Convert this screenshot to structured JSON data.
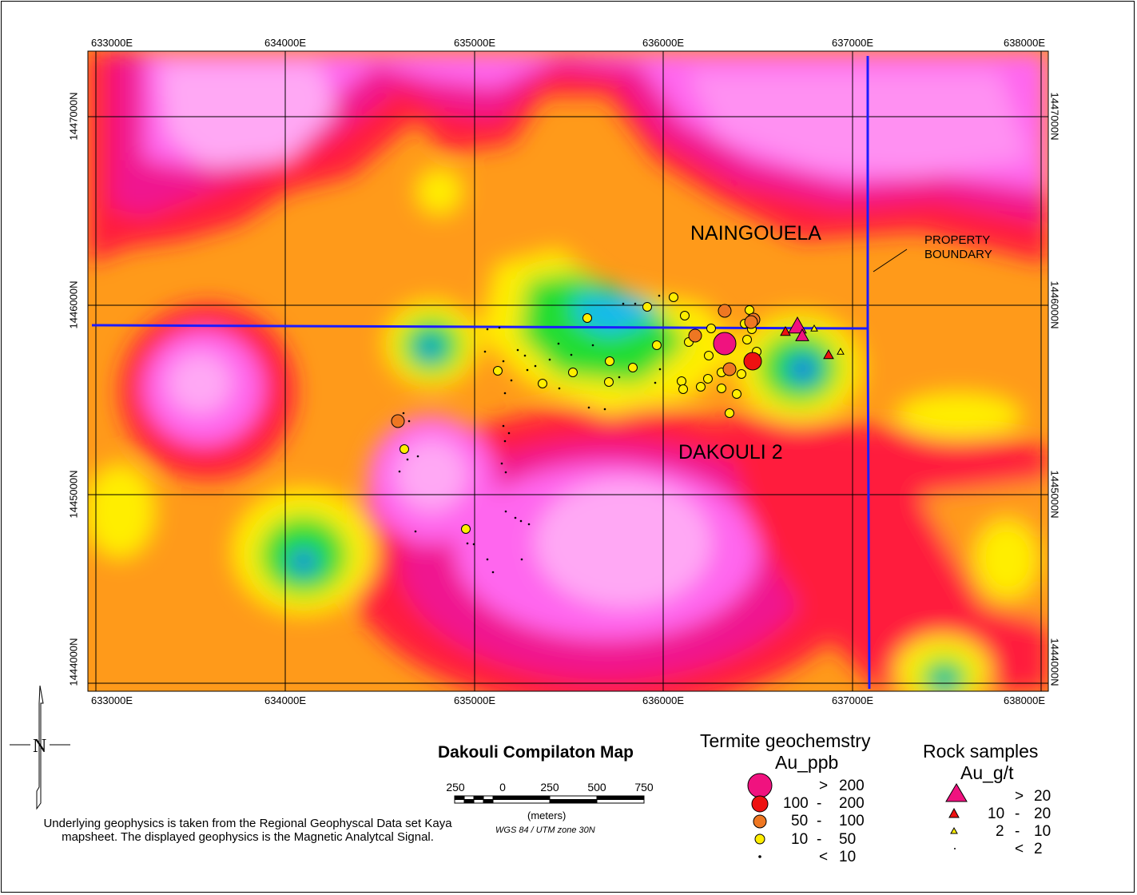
{
  "map": {
    "title": "Dakouli Compilaton Map",
    "labels": {
      "naingouela": "NAINGOUELA",
      "dakouli": "DAKOULI  2",
      "property_boundary": [
        "PROPERTY",
        "BOUNDARY"
      ]
    },
    "x_ticks": [
      "633000E",
      "634000E",
      "635000E",
      "636000E",
      "637000E",
      "638000E"
    ],
    "y_ticks": [
      "1447000N",
      "1446000N",
      "1445000N",
      "1444000N"
    ],
    "colors": {
      "boundary": "#1c1cff",
      "high_signal": "#ff66ee",
      "mid_signal": "#ff1a3c",
      "low_signal": "#1a4cff",
      "termite_gt200": "#f0127f",
      "termite_100_200": "#ee1111",
      "termite_50_100": "#ee7722",
      "termite_10_50": "#ffee00",
      "rock_gt20": "#f0127f",
      "rock_10_20": "#ee1111",
      "rock_2_10": "#ffee00"
    }
  },
  "scale_bar": {
    "numbers": [
      "250",
      "0",
      "250",
      "500",
      "750"
    ],
    "units": "(meters)",
    "projection": "WGS 84 / UTM zone 30N"
  },
  "note": "Underlying geophysics is taken from the Regional Geophyscal Data set Kaya mapsheet.  The displayed geophysics is the Magnetic Analytcal Signal.",
  "legend": {
    "termite": {
      "title_line1": "Termite geochemstry",
      "title_line2": "Au_ppb",
      "classes": [
        {
          "a": ">",
          "b": "200",
          "c": ""
        },
        {
          "a": "100",
          "b": "-",
          "c": "200"
        },
        {
          "a": "50",
          "b": "-",
          "c": "100"
        },
        {
          "a": "10",
          "b": "-",
          "c": "50"
        },
        {
          "a": "<",
          "b": "10",
          "c": ""
        }
      ]
    },
    "rock": {
      "title_line1": "Rock samples",
      "title_line2": "Au_g/t",
      "classes": [
        {
          "a": ">",
          "b": "20",
          "c": ""
        },
        {
          "a": "10",
          "b": "-",
          "c": "20"
        },
        {
          "a": "2",
          "b": "-",
          "c": "10"
        },
        {
          "a": "<",
          "b": "2",
          "c": ""
        }
      ]
    }
  },
  "north_arrow": {
    "label": "N"
  }
}
